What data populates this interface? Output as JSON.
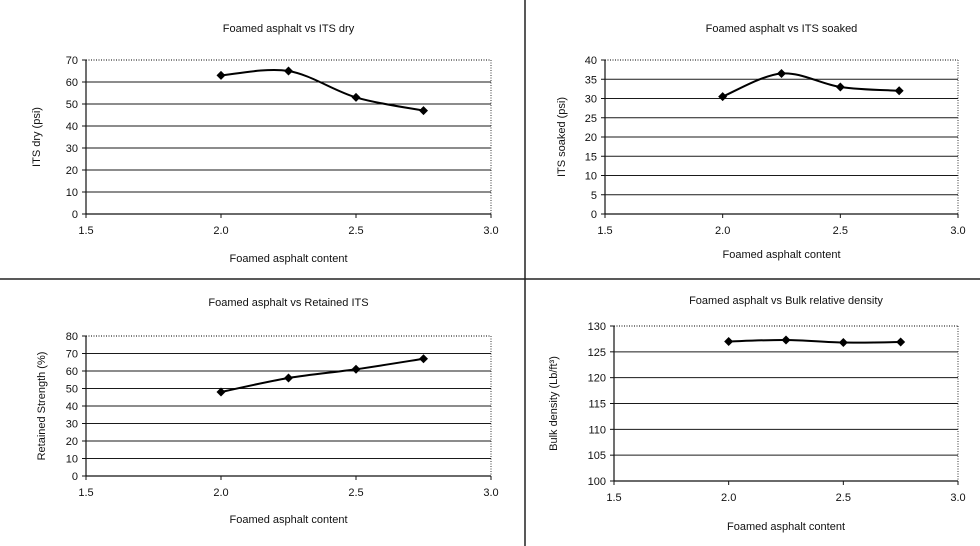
{
  "charts": [
    {
      "type": "line",
      "title": "Foamed asphalt vs ITS dry",
      "xlabel": "Foamed asphalt content",
      "ylabel": "ITS dry (psi)",
      "xlim": [
        1.5,
        3.0
      ],
      "ylim": [
        0,
        70
      ],
      "xticks": [
        "1.5",
        "2.0",
        "2.5",
        "3.0"
      ],
      "yticks": [
        "0",
        "10",
        "20",
        "30",
        "40",
        "50",
        "60",
        "70"
      ],
      "grid": true,
      "x": [
        2.0,
        2.25,
        2.5,
        2.75
      ],
      "y": [
        63,
        65,
        53,
        47
      ]
    },
    {
      "type": "line",
      "title": "Foamed asphalt vs ITS soaked",
      "xlabel": "Foamed asphalt content",
      "ylabel": "ITS soaked (psi)",
      "xlim": [
        1.5,
        3.0
      ],
      "ylim": [
        0,
        40
      ],
      "xticks": [
        "1.5",
        "2.0",
        "2.5",
        "3.0"
      ],
      "yticks": [
        "0",
        "5",
        "10",
        "15",
        "20",
        "25",
        "30",
        "35",
        "40"
      ],
      "grid": true,
      "x": [
        2.0,
        2.25,
        2.5,
        2.75
      ],
      "y": [
        30.5,
        36.5,
        33,
        32
      ]
    },
    {
      "type": "line",
      "title": "Foamed asphalt vs Retained ITS",
      "xlabel": "Foamed asphalt content",
      "ylabel": "Retained Strength (%)",
      "xlim": [
        1.5,
        3.0
      ],
      "ylim": [
        0,
        80
      ],
      "xticks": [
        "1.5",
        "2.0",
        "2.5",
        "3.0"
      ],
      "yticks": [
        "0",
        "10",
        "20",
        "30",
        "40",
        "50",
        "60",
        "70",
        "80"
      ],
      "grid": true,
      "x": [
        2.0,
        2.25,
        2.5,
        2.75
      ],
      "y": [
        48,
        56,
        61,
        67
      ]
    },
    {
      "type": "line",
      "title": "Foamed asphalt vs Bulk relative density",
      "xlabel": "Foamed asphalt content",
      "ylabel": "Bulk density (Lb/ft³)",
      "xlim": [
        1.5,
        3.0
      ],
      "ylim": [
        100,
        130
      ],
      "xticks": [
        "1.5",
        "2.0",
        "2.5",
        "3.0"
      ],
      "yticks": [
        "100",
        "105",
        "110",
        "115",
        "120",
        "125",
        "130"
      ],
      "grid": true,
      "x": [
        2.0,
        2.25,
        2.5,
        2.75
      ],
      "y": [
        127,
        127.3,
        126.8,
        126.9
      ]
    }
  ],
  "chart_data": [
    {
      "type": "line",
      "title": "Foamed asphalt vs ITS dry",
      "xlabel": "Foamed asphalt content",
      "ylabel": "ITS dry (psi)",
      "x": [
        2.0,
        2.25,
        2.5,
        2.75
      ],
      "y": [
        63,
        65,
        53,
        47
      ],
      "xlim": [
        1.5,
        3.0
      ],
      "ylim": [
        0,
        70
      ]
    },
    {
      "type": "line",
      "title": "Foamed asphalt vs ITS soaked",
      "xlabel": "Foamed asphalt content",
      "ylabel": "ITS soaked (psi)",
      "x": [
        2.0,
        2.25,
        2.5,
        2.75
      ],
      "y": [
        30.5,
        36.5,
        33,
        32
      ],
      "xlim": [
        1.5,
        3.0
      ],
      "ylim": [
        0,
        40
      ]
    },
    {
      "type": "line",
      "title": "Foamed asphalt vs Retained ITS",
      "xlabel": "Foamed asphalt content",
      "ylabel": "Retained Strength (%)",
      "x": [
        2.0,
        2.25,
        2.5,
        2.75
      ],
      "y": [
        48,
        56,
        61,
        67
      ],
      "xlim": [
        1.5,
        3.0
      ],
      "ylim": [
        0,
        80
      ]
    },
    {
      "type": "line",
      "title": "Foamed asphalt vs Bulk relative density",
      "xlabel": "Foamed asphalt content",
      "ylabel": "Bulk density (Lb/ft³)",
      "x": [
        2.0,
        2.25,
        2.5,
        2.75
      ],
      "y": [
        127,
        127.3,
        126.8,
        126.9
      ],
      "xlim": [
        1.5,
        3.0
      ],
      "ylim": [
        100,
        130
      ]
    }
  ],
  "style": {
    "line_color": "#000000",
    "grid_color": "#1a1a1a",
    "divider_color": "#222222"
  }
}
